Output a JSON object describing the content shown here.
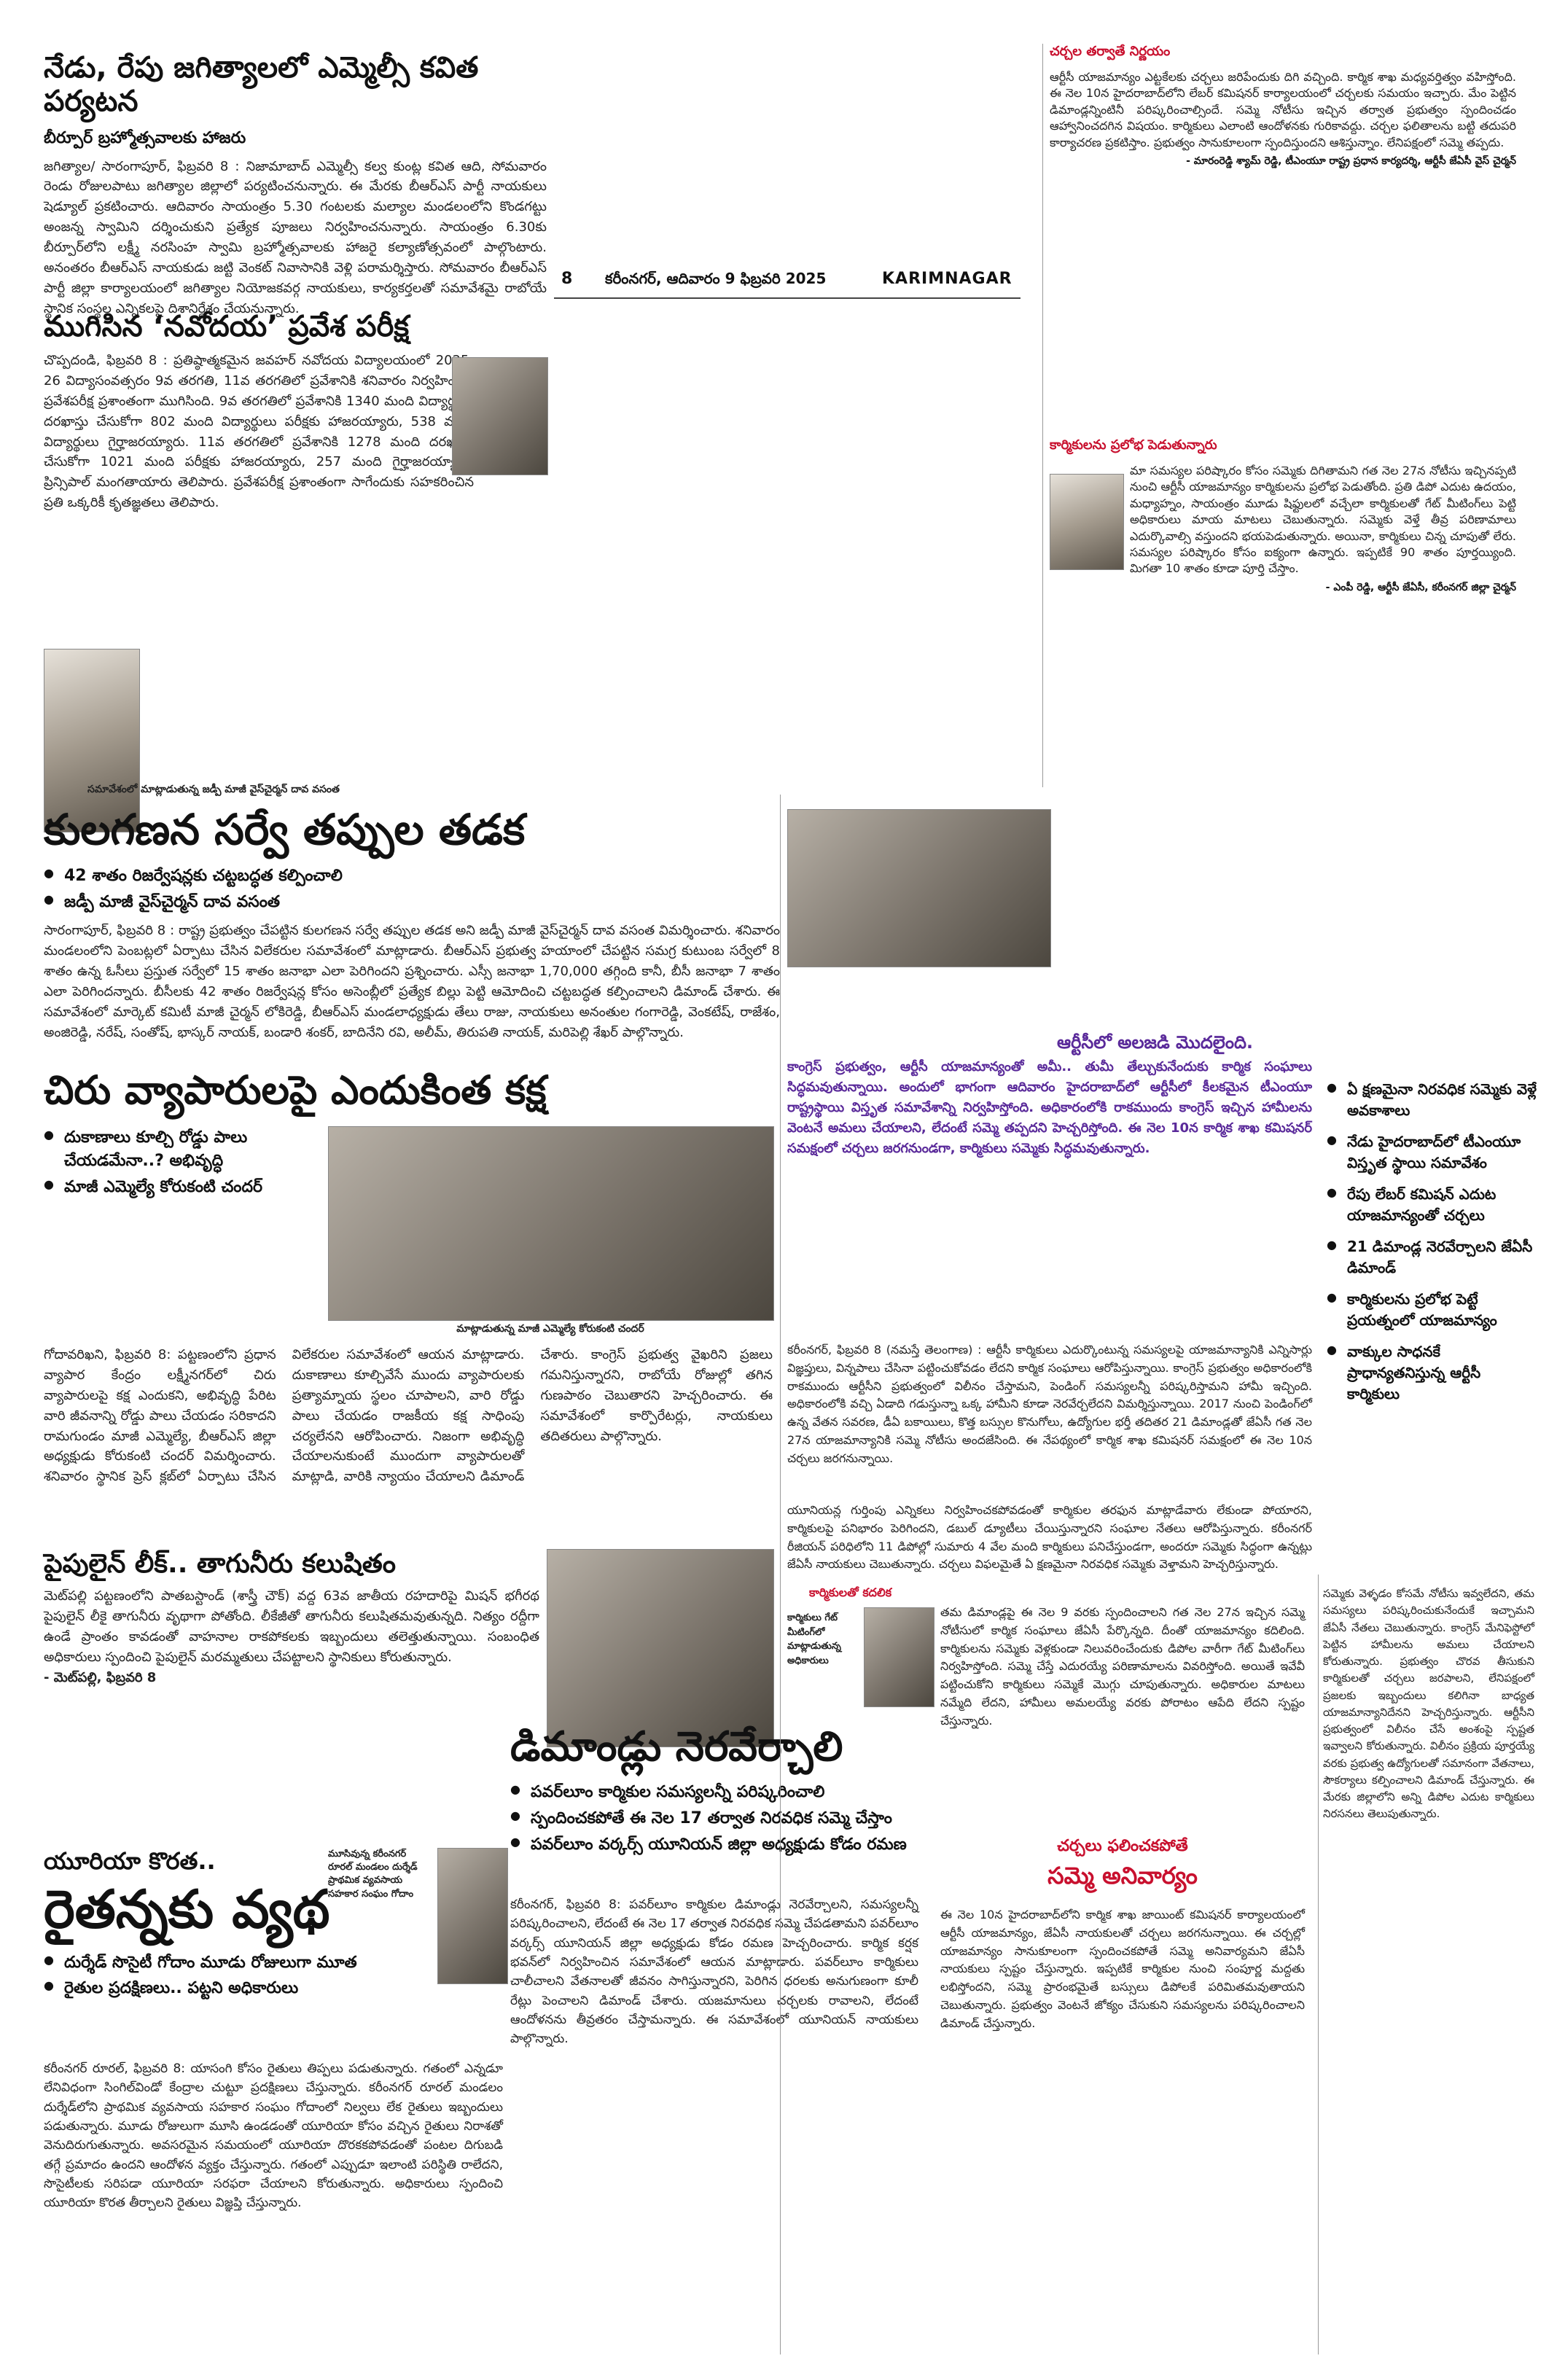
{
  "header": {
    "page_number": "8",
    "dateline": "కరీంనగర్, ఆదివారం 9 ఫిబ్రవరి 2025",
    "edition": "KARIMNAGAR"
  },
  "story1": {
    "headline": "నేడు, రేపు జగిత్యాలలో ఎమ్మెల్సీ కవిత పర్యటన",
    "subhead": "బీర్పూర్ బ్రహ్మోత్సవాలకు హాజరు",
    "body": "జగిత్యాల/ సారంగాపూర్, ఫిబ్రవరి 8 : నిజామాబాద్ ఎమ్మెల్సీ కల్వ కుంట్ల కవిత ఆది, సోమవారం రెండు రోజులపాటు జగిత్యాల జిల్లాలో పర్యటించనున్నారు. ఈ మేరకు బీఆర్ఎస్ పార్టీ నాయకులు షెడ్యూల్ ప్రకటించారు. ఆదివారం సాయంత్రం 5.30 గంటలకు మల్యాల మండలంలోని కొండగట్టు అంజన్న స్వామిని దర్శించుకుని ప్రత్యేక పూజలు నిర్వహించనున్నారు. సాయంత్రం 6.30కు బీర్పూర్‌లోని లక్ష్మీ నరసింహ స్వామి బ్రహ్మోత్సవాలకు హాజరై కల్యాణోత్సవంలో పాల్గొంటారు. అనంతరం బీఆర్ఎస్ నాయకుడు జట్టి వెంకట్ నివాసానికి వెళ్లి పరామర్శిస్తారు. సోమవారం బీఆర్ఎస్ పార్టీ జిల్లా కార్యాలయంలో జగిత్యాల నియోజకవర్గ నాయకులు, కార్యకర్తలతో సమావేశమై రాబోయే స్థానిక సంస్థల ఎన్నికలపై దిశానిర్దేశం చేయనున్నారు."
  },
  "story2": {
    "headline": "ముగిసిన ‘నవోదయ’ ప్రవేశ పరీక్ష",
    "body": "చొప్పదండి, ఫిబ్రవరి 8 : ప్రతిష్ఠాత్మకమైన జవహర్ నవోదయ విద్యాలయంలో 2025-26 విద్యాసంవత్సరం 9వ తరగతి, 11వ తరగతిలో ప్రవేశానికి శనివారం నిర్వహించిన ప్రవేశపరీక్ష ప్రశాంతంగా ముగిసింది. 9వ తరగతిలో ప్రవేశానికి 1340 మంది విద్యార్థులు దరఖాస్తు చేసుకోగా 802 మంది విద్యార్థులు పరీక్షకు హాజరయ్యారు, 538 మంది విద్యార్థులు గైర్హాజరయ్యారు. 11వ తరగతిలో ప్రవేశానికి 1278 మంది దరఖాస్తు చేసుకోగా 1021 మంది పరీక్షకు హాజరయ్యారు, 257 మంది గైర్హాజరయ్యారని ప్రిన్సిపాల్ మంగతాయారు తెలిపారు. ప్రవేశపరీక్ష ప్రశాంతంగా సాగేందుకు సహకరించిన ప్రతి ఒక్కరికీ కృతజ్ఞతలు తెలిపారు."
  },
  "story3": {
    "photo_caption": "సమావేశంలో మాట్లాడుతున్న జడ్పీ మాజీ వైస్‌చైర్మన్ దావ వసంత",
    "headline": "కులగణన సర్వే తప్పుల తడక",
    "bullets": [
      "42 శాతం రిజర్వేషన్లకు చట్టబద్ధత కల్పించాలి",
      "జడ్పీ మాజీ వైస్‌చైర్మన్ దావ వసంత"
    ],
    "body": "సారంగాపూర్, ఫిబ్రవరి 8 : రాష్ట్ర ప్రభుత్వం చేపట్టిన కులగణన సర్వే తప్పుల తడక అని జడ్పీ మాజీ వైస్‌చైర్మన్ దావ వసంత విమర్శించారు. శనివారం మండలంలోని పెంబట్లలో ఏర్పాటు చేసిన విలేకరుల సమావేశంలో మాట్లాడారు. బీఆర్ఎస్ ప్రభుత్వ హయాంలో చేపట్టిన సమగ్ర కుటుంబ సర్వేలో 8 శాతం ఉన్న ఓసీలు ప్రస్తుత సర్వేలో 15 శాతం జనాభా ఎలా పెరిగిందని ప్రశ్నించారు. ఎస్సీ జనాభా 1,70,000 తగ్గింది కానీ, బీసీ జనాభా 7 శాతం ఎలా పెరిగిందన్నారు. బీసీలకు 42 శాతం రిజర్వేషన్ల కోసం అసెంబ్లీలో ప్రత్యేక బిల్లు పెట్టి ఆమోదించి చట్టబద్ధత కల్పించాలని డిమాండ్ చేశారు. ఈ సమావేశంలో మార్కెట్ కమిటీ మాజీ చైర్మన్ లోకిరెడ్డి, బీఆర్ఎస్ మండలాధ్యక్షుడు తేలు రాజు, నాయకులు అనంతుల గంగారెడ్డి, వెంకటేష్, రాజేశం, అంజిరెడ్డి, నరేష్, సంతోష్, భాస్కర్ నాయక్, బండారి శంకర్, బాదినేని రవి, అలీమ్, తిరుపతి నాయక్, మరిపెల్లి శేఖర్ పాల్గొన్నారు."
  },
  "story4": {
    "headline": "చిరు వ్యాపారులపై ఎందుకింత కక్ష",
    "bullets": [
      "దుకాణాలు కూల్చి రోడ్డు పాలు చేయడమేనా..? అభివృద్ధి",
      "మాజీ ఎమ్మెల్యే కోరుకంటి చందర్"
    ],
    "photo_caption": "మాట్లాడుతున్న మాజీ ఎమ్మెల్యే కోరుకంటి చందర్",
    "body": "గోదావరిఖని, ఫిబ్రవరి 8: పట్టణంలోని ప్రధాన వ్యాపార కేంద్రం లక్ష్మీనగర్‌లో చిరు వ్యాపారులపై కక్ష ఎందుకని, అభివృద్ధి పేరిట వారి జీవనాన్ని రోడ్డు పాలు చేయడం సరికాదని రామగుండం మాజీ ఎమ్మెల్యే, బీఆర్ఎస్ జిల్లా అధ్యక్షుడు కోరుకంటి చందర్ విమర్శించారు. శనివారం స్థానిక ప్రెస్ క్లబ్‌లో ఏర్పాటు చేసిన విలేకరుల సమావేశంలో ఆయన మాట్లాడారు. దుకాణాలు కూల్చివేసే ముందు వ్యాపారులకు ప్రత్యామ్నాయ స్థలం చూపాలని, వారి రోడ్డు పాలు చేయడం రాజకీయ కక్ష సాధింపు చర్యలేనని ఆరోపించారు. నిజంగా అభివృద్ధి చేయాలనుకుంటే ముందుగా వ్యాపారులతో మాట్లాడి, వారికి న్యాయం చేయాలని డిమాండ్ చేశారు. కాంగ్రెస్ ప్రభుత్వ వైఖరిని ప్రజలు గమనిస్తున్నారని, రాబోయే రోజుల్లో తగిన గుణపాఠం చెబుతారని హెచ్చరించారు. ఈ సమావేశంలో కార్పొరేటర్లు, నాయకులు తదితరులు పాల్గొన్నారు."
  },
  "story5": {
    "headline": "పైపులైన్ లీక్.. తాగునీరు కలుషితం",
    "body": "మెట్‌పల్లి పట్టణంలోని పాతబస్టాండ్ (శాస్త్రీ చౌక్) వద్ద 63వ జాతీయ రహదారిపై మిషన్ భగీరథ పైపులైన్ లీకై తాగునీరు వృథాగా పోతోంది. లీకేజీతో తాగునీరు కలుషితమవుతున్నది. నిత్యం రద్దీగా ఉండే ప్రాంతం కావడంతో వాహనాల రాకపోకలకు ఇబ్బందులు తలెత్తుతున్నాయి. సంబంధిత అధికారులు స్పందించి పైపులైన్ మరమ్మతులు చేపట్టాలని స్థానికులు కోరుతున్నారు.",
    "dateline": "- మెట్‌పల్లి, ఫిబ్రవరి 8"
  },
  "story6": {
    "headline_small": "యూరియా కొరత..",
    "headline": "రైతన్నకు వ్యథ",
    "photo_caption": "మూసివున్న కరీంనగర్ రూరల్ మండలం దుర్శేడ్ ప్రాథమిక వ్యవసాయ సహకార సంఘం గోదాం",
    "bullets": [
      "దుర్శేడ్ సొసైటీ గోదాం మూడు రోజులుగా మూత",
      "రైతుల ప్రదక్షిణలు.. పట్టని అధికారులు"
    ],
    "body": "కరీంనగర్ రూరల్, ఫిబ్రవరి 8: యాసంగి కోసం రైతులు తిప్పలు పడుతున్నారు. గతంలో ఎన్నడూ లేనివిధంగా సింగిల్‌విండో కేంద్రాల చుట్టూ ప్రదక్షిణలు చేస్తున్నారు. కరీంనగర్ రూరల్ మండలం దుర్శేడ్‌లోని ప్రాథమిక వ్యవసాయ సహకార సంఘం గోదాంలో నిల్వలు లేక రైతులు ఇబ్బందులు పడుతున్నారు. మూడు రోజులుగా మూసి ఉండడంతో యూరియా కోసం వచ్చిన రైతులు నిరాశతో వెనుదిరుగుతున్నారు. అవసరమైన సమయంలో యూరియా దొరకకపోవడంతో పంటల దిగుబడి తగ్గే ప్రమాదం ఉందని ఆందోళన వ్యక్తం చేస్తున్నారు. గతంలో ఎప్పుడూ ఇలాంటి పరిస్థితి రాలేదని, సొసైటీలకు సరిపడా యూరియా సరఫరా చేయాలని కోరుతున్నారు. అధికారులు స్పందించి యూరియా కొరత తీర్చాలని రైతులు విజ్ఞప్తి చేస్తున్నారు."
  },
  "story7": {
    "headline": "డిమాండ్లు నెరవేర్చాలి",
    "bullets": [
      "పవర్‌లూం కార్మికుల సమస్యలన్నీ పరిష్కరించాలి",
      "స్పందించకపోతే ఈ నెల 17 తర్వాత నిరవధిక సమ్మె చేస్తాం",
      "పవర్‌లూం వర్కర్స్ యూనియన్ జిల్లా అధ్యక్షుడు కోడం రమణ"
    ],
    "body": "కరీంనగర్, ఫిబ్రవరి 8: పవర్‌లూం కార్మికుల డిమాండ్లు నెరవేర్చాలని, సమస్యలన్నీ పరిష్కరించాలని, లేదంటే ఈ నెల 17 తర్వాత నిరవధిక సమ్మె చేపడతామని పవర్‌లూం వర్కర్స్ యూనియన్ జిల్లా అధ్యక్షుడు కోడం రమణ హెచ్చరించారు. కార్మిక కర్షక భవన్‌లో నిర్వహించిన సమావేశంలో ఆయన మాట్లాడారు. పవర్‌లూం కార్మికులు చాలీచాలని వేతనాలతో జీవనం సాగిస్తున్నారని, పెరిగిన ధరలకు అనుగుణంగా కూలీ రేట్లు పెంచాలని డిమాండ్ చేశారు. యజమానులు చర్చలకు రావాలని, లేదంటే ఆందోళనను తీవ్రతరం చేస్తామన్నారు. ఈ సమావేశంలో యూనియన్ నాయకులు పాల్గొన్నారు."
  },
  "right1": {
    "kicker": "చర్చల తర్వాతే నిర్ణయం",
    "body": "ఆర్టీసీ యాజమాన్యం ఎట్టకేలకు చర్చలు జరిపేందుకు దిగి వచ్చింది. కార్మిక శాఖ మధ్యవర్తిత్వం వహిస్తోంది. ఈ నెల 10న హైదరాబాద్‌లోని లేబర్ కమిషనర్ కార్యాలయంలో చర్చలకు సమయం ఇచ్చారు. మేం పెట్టిన డిమాండ్లన్నింటినీ పరిష్కరించాల్సిందే. సమ్మె నోటీసు ఇచ్చిన తర్వాత ప్రభుత్వం స్పందించడం ఆహ్వానించదగిన విషయం. కార్మికులు ఎలాంటి ఆందోళనకు గురికావద్దు. చర్చల ఫలితాలను బట్టి తదుపరి కార్యాచరణ ప్రకటిస్తాం. ప్రభుత్వం సానుకూలంగా స్పందిస్తుందని ఆశిస్తున్నాం. లేనిపక్షంలో సమ్మె తప్పదు.",
    "signature": "- మారంరెడ్డి శ్యామ్ రెడ్డి, టీఎంయూ రాష్ట్ర ప్రధాన కార్యదర్శి, ఆర్టీసీ జేఏసీ వైస్ చైర్మన్"
  },
  "right2": {
    "kicker": "కార్మికులను ప్రలోభ పెడుతున్నారు",
    "body": "మా సమస్యల పరిష్కారం కోసం సమ్మెకు దిగితామని గత నెల 27న నోటీసు ఇచ్చినప్పటి నుంచి ఆర్టీసీ యాజమాన్యం కార్మికులను ప్రలోభ పెడుతోంది. ప్రతి డిపో ఎదుట ఉదయం, మధ్యాహ్నం, సాయంత్రం మూడు షిఫ్టులలో వచ్చేలా కార్మికులతో గేట్ మీటింగ్‌లు పెట్టి అధికారులు మాయ మాటలు చెబుతున్నారు. సమ్మెకు వెళ్తే తీవ్ర పరిణామాలు ఎదుర్కొవాల్సి వస్తుందని భయపెడుతున్నారు. అయినా, కార్మికులు చిన్న చూపుతో లేరు. సమస్యల పరిష్కారం కోసం ఐక్యంగా ఉన్నారు. ఇప్పటికే 90 శాతం పూర్తయ్యింది. మిగతా 10 శాతం కూడా పూర్తి చేస్తాం.",
    "signature": "- ఎంపీ రెడ్డి, ఆర్టీసీ జేఏసీ, కరీంనగర్ జిల్లా చైర్మన్"
  },
  "rtc": {
    "lead_headline": "ఆర్టీసీలో అలజడి మొదలైంది.",
    "lead_body": "కాంగ్రెస్ ప్రభుత్వం, ఆర్టీసీ యాజమాన్యంతో అమీ.. తుమీ తేల్చుకునేందుకు కార్మిక సంఘాలు సిద్ధమవుతున్నాయి. అందులో భాగంగా ఆదివారం హైదరాబాద్‌లో ఆర్టీసీలో కీలకమైన టీఎంయూ రాష్ట్రస్థాయి విస్తృత సమావేశాన్ని నిర్వహిస్తోంది. అధికారంలోకి రాకముందు కాంగ్రెస్ ఇచ్చిన హామీలను వెంటనే అమలు చేయాలని, లేదంటే సమ్మె తప్పదని హెచ్చరిస్తోంది. ఈ నెల 10న కార్మిక శాఖ కమిషనర్ సమక్షంలో చర్చలు జరగనుండగా, కార్మికులు సమ్మెకు సిద్ధమవుతున్నారు.",
    "side_bullets": [
      "ఏ క్షణమైనా నిరవధిక సమ్మెకు వెళ్లే అవకాశాలు",
      "నేడు హైదరాబాద్‌లో టీఎంయూ విస్తృత స్థాయి సమావేశం",
      "రేపు లేబర్ కమిషన్ ఎదుట యాజమాన్యంతో చర్చలు",
      "21 డిమాండ్ల నెరవేర్చాలని జేఏసీ డిమాండ్",
      "కార్మికులను ప్రలోభ పెట్టే ప్రయత్నంలో యాజమాన్యం",
      "వాక్కుల సాధనకే ప్రాధాన్యతనిస్తున్న ఆర్టీసీ కార్మికులు"
    ],
    "body1": "కరీంనగర్, ఫిబ్రవరి 8 (నమస్తే తెలంగాణ) : ఆర్టీసీ కార్మికులు ఎదుర్కొంటున్న సమస్యలపై యాజమాన్యానికి ఎన్నిసార్లు విజ్ఞప్తులు, విన్నపాలు చేసినా పట్టించుకోవడం లేదని కార్మిక సంఘాలు ఆరోపిస్తున్నాయి. కాంగ్రెస్ ప్రభుత్వం అధికారంలోకి రాకముందు ఆర్టీసీని ప్రభుత్వంలో విలీనం చేస్తామని, పెండింగ్ సమస్యలన్నీ పరిష్కరిస్తామని హామీ ఇచ్చింది. అధికారంలోకి వచ్చి ఏడాది గడుస్తున్నా ఒక్క హామీని కూడా నెరవేర్చలేదని విమర్శిస్తున్నాయి. 2017 నుంచి పెండింగ్‌లో ఉన్న వేతన సవరణ, డీఏ బకాయిలు, కొత్త బస్సుల కొనుగోలు, ఉద్యోగుల భర్తీ తదితర 21 డిమాండ్లతో జేఏసీ గత నెల 27న యాజమాన్యానికి సమ్మె నోటీసు అందజేసింది. ఈ నేపథ్యంలో కార్మిక శాఖ కమిషనర్ సమక్షంలో ఈ నెల 10న చర్చలు జరగనున్నాయి.",
    "body2": "యూనియన్ల గుర్తింపు ఎన్నికలు నిర్వహించకపోవడంతో కార్మికుల తరఫున మాట్లాడేవారు లేకుండా పోయారని, కార్మికులపై పనిభారం పెరిగిందని, డబుల్ డ్యూటీలు చేయిస్తున్నారని సంఘాల నేతలు ఆరోపిస్తున్నారు. కరీంనగర్ రీజియన్ పరిధిలోని 11 డిపోల్లో సుమారు 4 వేల మంది కార్మికులు పనిచేస్తుండగా, అందరూ సమ్మెకు సిద్ధంగా ఉన్నట్లు జేఏసీ నాయకులు చెబుతున్నారు. చర్చలు విఫలమైతే ఏ క్షణమైనా నిరవధిక సమ్మెకు వెళ్తామని హెచ్చరిస్తున్నారు.",
    "box_title": "కార్మికులతో కదలిక",
    "photo_caption": "కార్మికులు గేట్ మీటింగ్‌లో మాట్లాడుతున్న అధికారులు",
    "body3": "తమ డిమాండ్లపై ఈ నెల 9 వరకు స్పందించాలని గత నెల 27న ఇచ్చిన సమ్మె నోటీసులో కార్మిక సంఘాలు జేఏసీ పేర్కొన్నది. దీంతో యాజమాన్యం కదిలింది. కార్మికులను సమ్మెకు వెళ్లకుండా నిలువరించేందుకు డిపోల వారీగా గేట్ మీటింగ్‌లు నిర్వహిస్తోంది. సమ్మె చేస్తే ఎదురయ్యే పరిణామాలను వివరిస్తోంది. అయితే ఇవేవీ పట్టించుకోని కార్మికులు సమ్మెకే మొగ్గు చూపుతున్నారు. అధికారుల మాటలు నమ్మేది లేదని, హామీలు అమలయ్యే వరకు పోరాటం ఆపేది లేదని స్పష్టం చేస్తున్నారు.",
    "fail_kicker": "చర్చలు ఫలించకపోతే",
    "fail_headline": "సమ్మె అనివార్యం",
    "body4": "ఈ నెల 10న హైదరాబాద్‌లోని కార్మిక శాఖ జాయింట్ కమిషనర్ కార్యాలయంలో ఆర్టీసీ యాజమాన్యం, జేఏసీ నాయకులతో చర్చలు జరగనున్నాయి. ఈ చర్చల్లో యాజమాన్యం సానుకూలంగా స్పందించకపోతే సమ్మె అనివార్యమని జేఏసీ నాయకులు స్పష్టం చేస్తున్నారు. ఇప్పటికే కార్మికుల నుంచి సంపూర్ణ మద్దతు లభిస్తోందని, సమ్మె ప్రారంభమైతే బస్సులు డిపోలకే పరిమితమవుతాయని చెబుతున్నారు. ప్రభుత్వం వెంటనే జోక్యం చేసుకుని సమస్యలను పరిష్కరించాలని డిమాండ్ చేస్తున్నారు.",
    "body5": "సమ్మెకు వెళ్ళడం కోసమే నోటీసు ఇవ్వలేదని, తమ సమస్యలు పరిష్కరించుకునేందుకే ఇచ్చామని జేఏసీ నేతలు చెబుతున్నారు. కాంగ్రెస్ మేనిఫెస్టోలో పెట్టిన హామీలను అమలు చేయాలని కోరుతున్నారు. ప్రభుత్వం చొరవ తీసుకుని కార్మికులతో చర్చలు జరపాలని, లేనిపక్షంలో ప్రజలకు ఇబ్బందులు కలిగినా బాధ్యత యాజమాన్యానిదేనని హెచ్చరిస్తున్నారు. ఆర్టీసీని ప్రభుత్వంలో విలీనం చేసే అంశంపై స్పష్టత ఇవ్వాలని కోరుతున్నారు. విలీనం ప్రక్రియ పూర్తయ్యే వరకు ప్రభుత్వ ఉద్యోగులతో సమానంగా వేతనాలు, సౌకర్యాలు కల్పించాలని డిమాండ్ చేస్తున్నారు. ఈ మేరకు జిల్లాలోని అన్ని డిపోల ఎదుట కార్మికులు నిరసనలు తెలుపుతున్నారు."
  }
}
